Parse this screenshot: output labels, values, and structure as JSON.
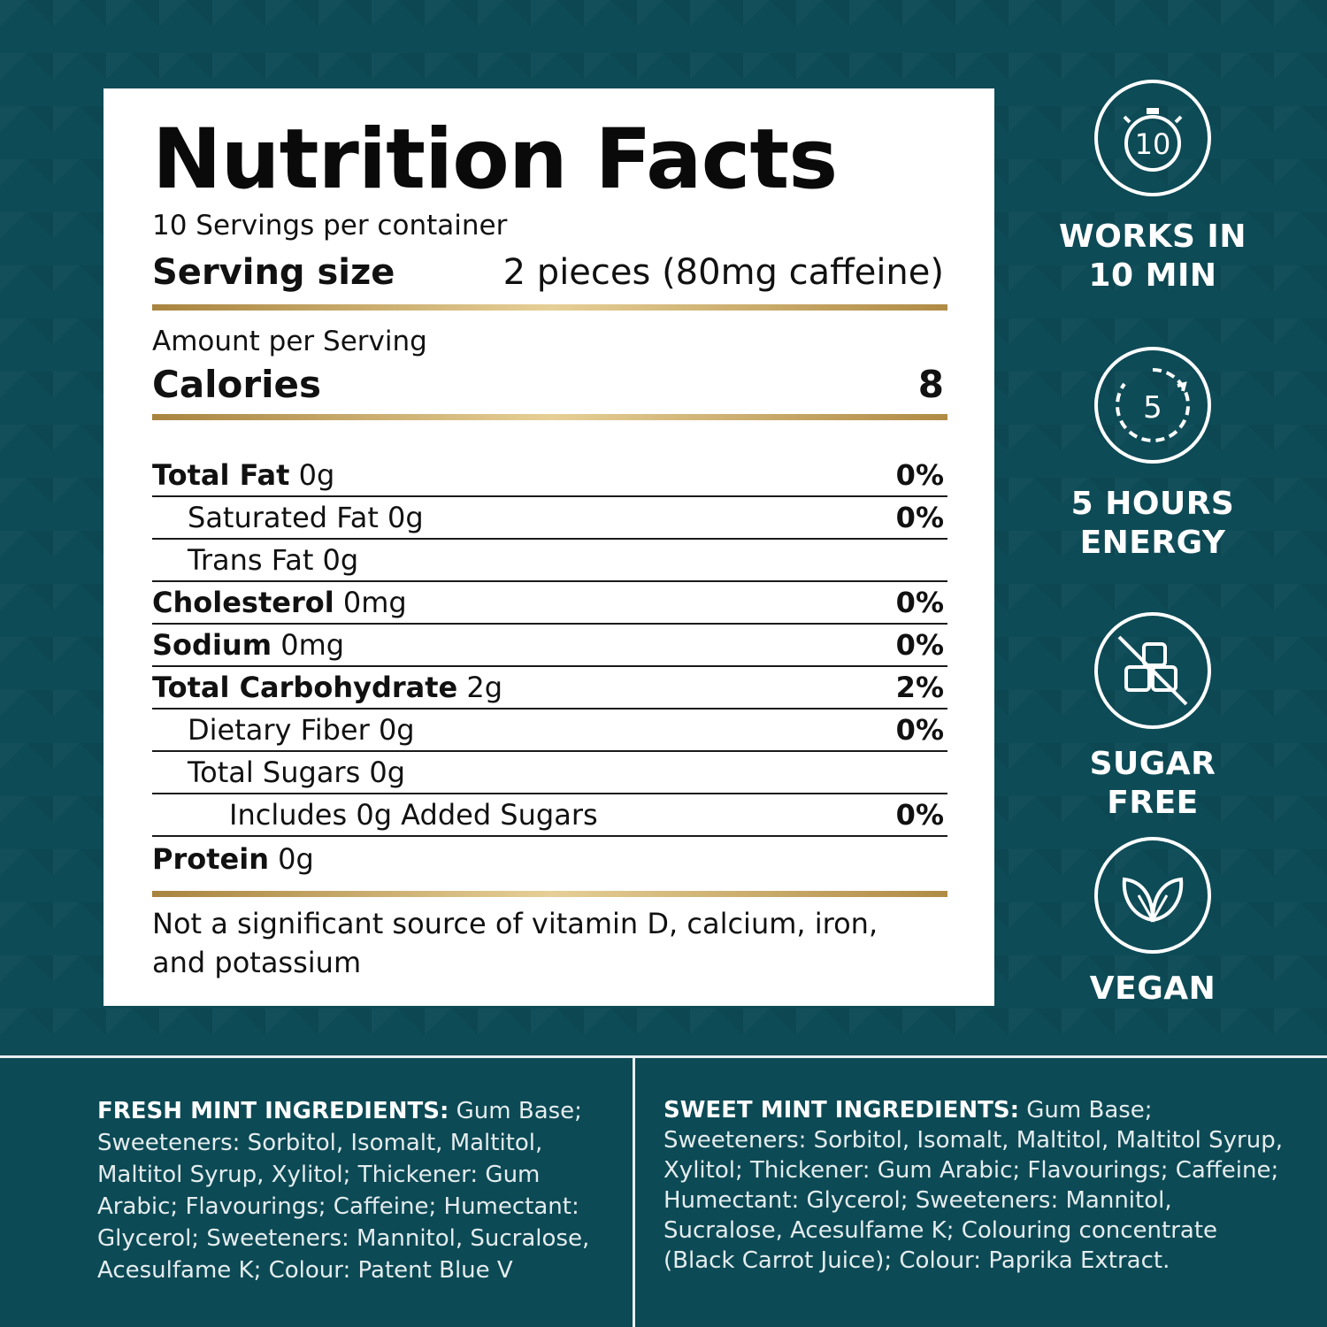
{
  "nutrition": {
    "title": "Nutrition Facts",
    "servings_per_container": "10 Servings per container",
    "serving_size_label": "Serving size",
    "serving_size_value": "2 pieces (80mg caffeine)",
    "amount_per_serving": "Amount per Serving",
    "calories_label": "Calories",
    "calories_value": "8",
    "rows": [
      {
        "bold": "Total Fat",
        "rest": " 0g",
        "pct": "0%"
      },
      {
        "bold": "",
        "rest": "Saturated Fat 0g",
        "pct": "0%"
      },
      {
        "bold": "",
        "rest": "Trans Fat 0g",
        "pct": ""
      },
      {
        "bold": "Cholesterol",
        "rest": " 0mg",
        "pct": "0%"
      },
      {
        "bold": "Sodium",
        "rest": " 0mg",
        "pct": "0%"
      },
      {
        "bold": "Total Carbohydrate",
        "rest": " 2g",
        "pct": "2%"
      },
      {
        "bold": "",
        "rest": "Dietary Fiber 0g",
        "pct": "0%"
      },
      {
        "bold": "",
        "rest": "Total Sugars 0g",
        "pct": ""
      },
      {
        "bold": "",
        "rest": "Includes 0g Added Sugars",
        "pct": "0%"
      },
      {
        "bold": "Protein",
        "rest": " 0g",
        "pct": ""
      }
    ],
    "footnote": "Not a significant source of vitamin D, calcium, iron, and potassium"
  },
  "features": [
    {
      "icon": "stopwatch-icon",
      "icon_text": "10",
      "line1": "WORKS IN",
      "line2": "10 MIN"
    },
    {
      "icon": "clock-icon",
      "icon_text": "5",
      "line1": "5 HOURS",
      "line2": "ENERGY"
    },
    {
      "icon": "no-sugar-icon",
      "icon_text": "",
      "line1": "SUGAR FREE",
      "line2": ""
    },
    {
      "icon": "leaf-icon",
      "icon_text": "",
      "line1": "VEGAN",
      "line2": ""
    }
  ],
  "ingredients": {
    "fresh_heading": "FRESH MINT INGREDIENTS:",
    "fresh_text": " Gum Base; Sweeteners: Sorbitol, Isomalt, Maltitol, Maltitol Syrup, Xylitol; Thickener: Gum Arabic; Flavourings; Caffeine; Humectant: Glycerol; Sweeteners: Mannitol, Sucralose, Acesulfame K; Colour: Patent Blue V",
    "sweet_heading": "SWEET MINT INGREDIENTS:",
    "sweet_text": " Gum Base; Sweeteners: Sorbitol, Isomalt, Maltitol, Maltitol Syrup, Xylitol; Thickener: Gum Arabic; Flavourings; Caffeine; Humectant: Glycerol; Sweeteners: Mannitol, Sucralose, Acesulfame K; Colouring concentrate (Black Carrot Juice); Colour: Paprika Extract."
  },
  "colors": {
    "background": "#0c4a55",
    "panel": "#ffffff",
    "gold": "#c9a55c"
  }
}
